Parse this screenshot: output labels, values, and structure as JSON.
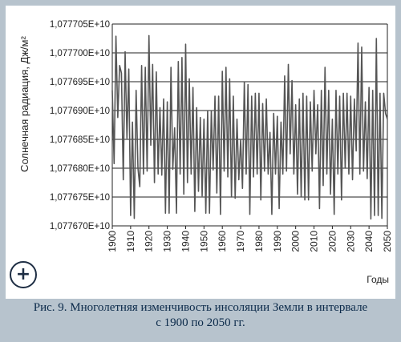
{
  "chart_data": {
    "type": "line",
    "title": "",
    "xlabel": "Годы",
    "ylabel": "Солнечная радиация, Дж/м²",
    "xlim": [
      1900,
      2050
    ],
    "ylim": [
      10776700000.0,
      10777050000.0
    ],
    "grid": true,
    "y_ticks": [
      "1,077670E+10",
      "1,077675E+10",
      "1,077680E+10",
      "1,077685E+10",
      "1,077690E+10",
      "1,077695E+10",
      "1,077700E+10",
      "1,077705E+10"
    ],
    "x_ticks": [
      "1900",
      "1910",
      "1920",
      "1930",
      "1940",
      "1950",
      "1960",
      "1970",
      "1980",
      "1990",
      "2000",
      "2010",
      "2020",
      "2030",
      "2040",
      "2050"
    ],
    "series": [
      {
        "color": "#555555",
        "x": [
          1900,
          1901,
          1902,
          1903,
          1904,
          1905,
          1906,
          1907,
          1908,
          1909,
          1910,
          1911,
          1912,
          1913,
          1914,
          1915,
          1916,
          1917,
          1918,
          1919,
          1920,
          1921,
          1922,
          1923,
          1924,
          1925,
          1926,
          1927,
          1928,
          1929,
          1930,
          1931,
          1932,
          1933,
          1934,
          1935,
          1936,
          1937,
          1938,
          1939,
          1940,
          1941,
          1942,
          1943,
          1944,
          1945,
          1946,
          1947,
          1948,
          1949,
          1950,
          1951,
          1952,
          1953,
          1954,
          1955,
          1956,
          1957,
          1958,
          1959,
          1960,
          1961,
          1962,
          1963,
          1964,
          1965,
          1966,
          1967,
          1968,
          1969,
          1970,
          1971,
          1972,
          1973,
          1974,
          1975,
          1976,
          1977,
          1978,
          1979,
          1980,
          1981,
          1982,
          1983,
          1984,
          1985,
          1986,
          1987,
          1988,
          1989,
          1990,
          1991,
          1992,
          1993,
          1994,
          1995,
          1996,
          1997,
          1998,
          1999,
          2000,
          2001,
          2002,
          2003,
          2004,
          2005,
          2006,
          2007,
          2008,
          2009,
          2010,
          2011,
          2012,
          2013,
          2014,
          2015,
          2016,
          2017,
          2018,
          2019,
          2020,
          2021,
          2022,
          2023,
          2024,
          2025,
          2026,
          2027,
          2028,
          2029,
          2030,
          2031,
          2032,
          2033,
          2034,
          2035,
          2036,
          2037,
          2038,
          2039,
          2040,
          2041,
          2042,
          2043,
          2044,
          2045,
          2046,
          2047,
          2048,
          2049,
          2050
        ],
        "y": [
          10776935000.0,
          10776808000.0,
          10777029000.0,
          10776888000.0,
          10776978000.0,
          10776965000.0,
          10776780000.0,
          10777002000.0,
          10776852000.0,
          10776972000.0,
          10776718000.0,
          10776880000.0,
          10776713000.0,
          10776935000.0,
          10776800000.0,
          10776768000.0,
          10776978000.0,
          10776790000.0,
          10776975000.0,
          10776795000.0,
          10777030000.0,
          10776840000.0,
          10776980000.0,
          10776775000.0,
          10776967000.0,
          10776790000.0,
          10776905000.0,
          10776788000.0,
          10776920000.0,
          10776722000.0,
          10776915000.0,
          10776722000.0,
          10776975000.0,
          10776798000.0,
          10776870000.0,
          10776722000.0,
          10776985000.0,
          10776790000.0,
          10776992000.0,
          10776755000.0,
          10777015000.0,
          10776775000.0,
          10776955000.0,
          10776790000.0,
          10776940000.0,
          10776725000.0,
          10776905000.0,
          10776760000.0,
          10776888000.0,
          10776752000.0,
          10776885000.0,
          10776722000.0,
          10776900000.0,
          10776722000.0,
          10776900000.0,
          10776797000.0,
          10776925000.0,
          10776757000.0,
          10776925000.0,
          10776720000.0,
          10776968000.0,
          10776795000.0,
          10776975000.0,
          10776785000.0,
          10776955000.0,
          10776750000.0,
          10776925000.0,
          10776748000.0,
          10776885000.0,
          10776780000.0,
          10776850000.0,
          10776765000.0,
          10776950000.0,
          10776790000.0,
          10776945000.0,
          10776720000.0,
          10776925000.0,
          10776785000.0,
          10776930000.0,
          10776790000.0,
          10776930000.0,
          10776745000.0,
          10776912000.0,
          10776795000.0,
          10776920000.0,
          10776790000.0,
          10776862000.0,
          10776720000.0,
          10776895000.0,
          10776790000.0,
          10776890000.0,
          10776730000.0,
          10776880000.0,
          10776790000.0,
          10776960000.0,
          10776795000.0,
          10776980000.0,
          10776825000.0,
          10776952000.0,
          10776790000.0,
          10776910000.0,
          10776755000.0,
          10776920000.0,
          10776750000.0,
          10776930000.0,
          10776745000.0,
          10776925000.0,
          10776745000.0,
          10776915000.0,
          10776795000.0,
          10776935000.0,
          10776825000.0,
          10776910000.0,
          10776730000.0,
          10776935000.0,
          10776770000.0,
          10776975000.0,
          10776790000.0,
          10776935000.0,
          10776755000.0,
          10776885000.0,
          10776720000.0,
          10776935000.0,
          10776790000.0,
          10776925000.0,
          10776745000.0,
          10776930000.0,
          10776800000.0,
          10776930000.0,
          10776790000.0,
          10776925000.0,
          10776780000.0,
          10776920000.0,
          10776830000.0,
          10777017000.0,
          10776790000.0,
          10777010000.0,
          10776795000.0,
          10776915000.0,
          10776782000.0,
          10776940000.0,
          10776712000.0,
          10776935000.0,
          10776718000.0,
          10777025000.0,
          10776718000.0,
          10776930000.0,
          10776713000.0,
          10776930000.0,
          10776895000.0,
          10776885000.0
        ]
      }
    ]
  },
  "caption": {
    "line1": "Рис. 9. Многолетняя изменчивость инсоляции Земли в интервале",
    "line2": "с 1900 по 2050 гг."
  },
  "controls": {
    "plus_label": "+"
  }
}
